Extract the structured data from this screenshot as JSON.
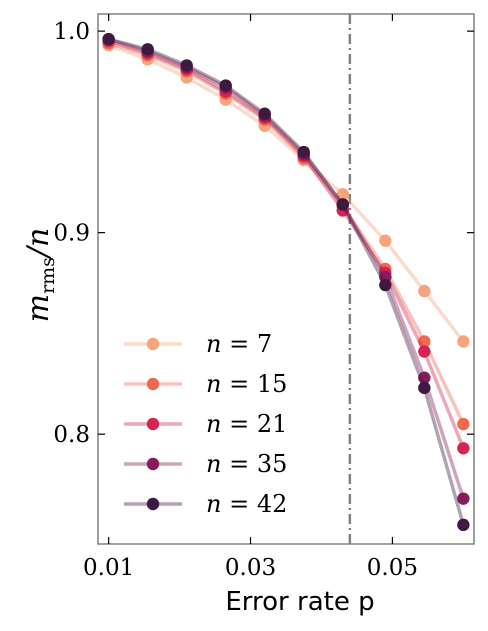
{
  "chart_data": {
    "type": "line",
    "xlabel": "Error rate p",
    "ylabel": {
      "main": "m",
      "sub": "rms",
      "tail": "/n"
    },
    "xlim": [
      0.0085,
      0.0615
    ],
    "ylim": [
      0.7455,
      1.0085
    ],
    "xticks": [
      {
        "value": 0.01,
        "label": "0.01"
      },
      {
        "value": 0.03,
        "label": "0.03"
      },
      {
        "value": 0.05,
        "label": "0.05"
      }
    ],
    "yticks": [
      {
        "value": 0.8,
        "label": "0.8"
      },
      {
        "value": 0.9,
        "label": "0.9"
      },
      {
        "value": 1.0,
        "label": "1.0"
      }
    ],
    "threshold": {
      "x": 0.044,
      "style": "dash-dot",
      "color": "#808080"
    },
    "x": [
      0.01,
      0.0155,
      0.021,
      0.0265,
      0.032,
      0.0375,
      0.043,
      0.049,
      0.0545,
      0.06
    ],
    "series": [
      {
        "name": "n = 7",
        "var": "n",
        "eq": " = ",
        "num": "7",
        "color": "#f5a47c",
        "values": [
          0.993,
          0.986,
          0.977,
          0.966,
          0.953,
          0.936,
          0.919,
          0.896,
          0.871,
          0.846
        ]
      },
      {
        "name": "n = 15",
        "var": "n",
        "eq": " = ",
        "num": "15",
        "color": "#ee6a4f",
        "values": [
          0.994,
          0.988,
          0.98,
          0.969,
          0.956,
          0.937,
          0.913,
          0.882,
          0.846,
          0.805
        ]
      },
      {
        "name": "n = 21",
        "var": "n",
        "eq": " = ",
        "num": "21",
        "color": "#d52352",
        "values": [
          0.995,
          0.989,
          0.981,
          0.97,
          0.957,
          0.938,
          0.911,
          0.88,
          0.841,
          0.793
        ]
      },
      {
        "name": "n = 35",
        "var": "n",
        "eq": " = ",
        "num": "35",
        "color": "#8a1b5b",
        "values": [
          0.996,
          0.99,
          0.982,
          0.972,
          0.958,
          0.939,
          0.914,
          0.878,
          0.828,
          0.768
        ]
      },
      {
        "name": "n = 42",
        "var": "n",
        "eq": " = ",
        "num": "42",
        "color": "#3e1a40",
        "values": [
          0.996,
          0.991,
          0.983,
          0.973,
          0.959,
          0.94,
          0.914,
          0.874,
          0.823,
          0.755
        ]
      }
    ],
    "legend": {
      "placement": "lower-left"
    },
    "grid": false
  }
}
